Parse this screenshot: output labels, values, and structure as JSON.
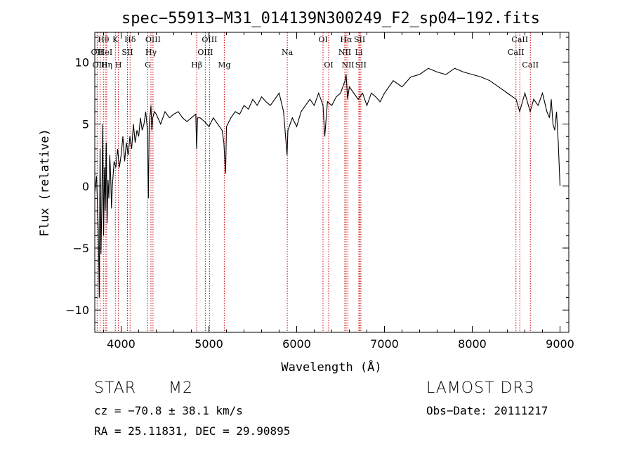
{
  "chart_data": {
    "type": "line",
    "title": "spec−55913−M31_014139N300249_F2_sp04−192.fits",
    "xlabel": "Wavelength (Å)",
    "ylabel": "Flux (relative)",
    "xlim": [
      3700,
      9100
    ],
    "ylim": [
      -11.8,
      12.4
    ],
    "xticks": [
      4000,
      5000,
      6000,
      7000,
      8000,
      9000
    ],
    "yticks": [
      -10,
      -5,
      0,
      5,
      10
    ],
    "series": [
      {
        "name": "flux",
        "x": [
          3700,
          3720,
          3740,
          3750,
          3760,
          3770,
          3780,
          3790,
          3800,
          3810,
          3820,
          3830,
          3840,
          3850,
          3860,
          3870,
          3880,
          3890,
          3900,
          3920,
          3940,
          3960,
          3980,
          4000,
          4020,
          4040,
          4060,
          4080,
          4100,
          4120,
          4140,
          4160,
          4180,
          4200,
          4220,
          4240,
          4260,
          4280,
          4300,
          4310,
          4320,
          4340,
          4350,
          4360,
          4380,
          4400,
          4450,
          4500,
          4550,
          4600,
          4650,
          4700,
          4750,
          4800,
          4850,
          4860,
          4870,
          4900,
          4950,
          5000,
          5050,
          5100,
          5150,
          5170,
          5190,
          5200,
          5250,
          5300,
          5350,
          5400,
          5450,
          5500,
          5550,
          5600,
          5650,
          5700,
          5750,
          5800,
          5850,
          5890,
          5900,
          5950,
          6000,
          6050,
          6100,
          6150,
          6200,
          6250,
          6300,
          6320,
          6350,
          6400,
          6450,
          6500,
          6550,
          6563,
          6580,
          6600,
          6650,
          6700,
          6750,
          6800,
          6850,
          6900,
          6950,
          7000,
          7100,
          7200,
          7300,
          7400,
          7500,
          7600,
          7700,
          7800,
          7900,
          8000,
          8100,
          8200,
          8300,
          8400,
          8500,
          8540,
          8600,
          8660,
          8700,
          8750,
          8800,
          8850,
          8880,
          8900,
          8920,
          8940,
          8960,
          8980,
          9000
        ],
        "y": [
          -0.5,
          0.8,
          -3.5,
          -9.0,
          3.0,
          -5.5,
          -1.5,
          5.0,
          -4.0,
          1.5,
          -2.0,
          3.5,
          -3.0,
          0.5,
          -1.0,
          2.5,
          1.0,
          -1.8,
          0.0,
          2.0,
          1.5,
          3.0,
          1.5,
          2.5,
          4.0,
          2.0,
          3.5,
          2.5,
          4.0,
          3.0,
          5.0,
          3.5,
          4.5,
          4.0,
          5.5,
          4.5,
          5.0,
          6.0,
          4.5,
          -1.0,
          5.0,
          6.5,
          4.5,
          5.5,
          6.0,
          5.8,
          5.0,
          6.0,
          5.5,
          5.8,
          6.0,
          5.5,
          5.2,
          5.5,
          5.8,
          3.0,
          5.5,
          5.5,
          5.2,
          4.8,
          5.5,
          5.0,
          4.5,
          3.5,
          1.0,
          4.8,
          5.5,
          6.0,
          5.8,
          6.5,
          6.2,
          7.0,
          6.5,
          7.2,
          6.8,
          6.5,
          7.0,
          7.5,
          6.0,
          2.5,
          4.5,
          5.5,
          4.8,
          6.0,
          6.5,
          7.0,
          6.5,
          7.5,
          6.5,
          4.0,
          6.8,
          6.5,
          7.2,
          7.5,
          8.5,
          9.0,
          7.0,
          8.0,
          7.5,
          7.0,
          7.5,
          6.5,
          7.5,
          7.2,
          6.8,
          7.5,
          8.5,
          8.0,
          8.8,
          9.0,
          9.5,
          9.2,
          9.0,
          9.5,
          9.2,
          9.0,
          8.8,
          8.5,
          8.0,
          7.5,
          7.0,
          6.0,
          7.5,
          6.0,
          7.0,
          6.5,
          7.5,
          6.0,
          5.5,
          7.0,
          5.0,
          4.5,
          6.0,
          3.5,
          0.0
        ]
      }
    ],
    "line_markers": [
      {
        "label": "Hθ",
        "x": 3798,
        "row": 0
      },
      {
        "label": "OII",
        "x": 3727,
        "row": 1
      },
      {
        "label": "OIII",
        "x": 3760,
        "row": 2
      },
      {
        "label": "HeI",
        "x": 3820,
        "row": 1
      },
      {
        "label": "Hη",
        "x": 3835,
        "row": 2
      },
      {
        "label": "K",
        "x": 3934,
        "row": 0
      },
      {
        "label": "SII",
        "x": 4072,
        "row": 1
      },
      {
        "label": "H",
        "x": 3969,
        "row": 2
      },
      {
        "label": "Hδ",
        "x": 4102,
        "row": 0
      },
      {
        "label": "OIII",
        "x": 4363,
        "row": 0
      },
      {
        "label": "Hγ",
        "x": 4340,
        "row": 1
      },
      {
        "label": "G",
        "x": 4304,
        "row": 2
      },
      {
        "label": "OIII",
        "x": 5007,
        "row": 0
      },
      {
        "label": "OIII",
        "x": 4959,
        "row": 1
      },
      {
        "label": "Hβ",
        "x": 4861,
        "row": 2
      },
      {
        "label": "Mg",
        "x": 5175,
        "row": 2
      },
      {
        "label": "Na",
        "x": 5893,
        "row": 1
      },
      {
        "label": "OI",
        "x": 6300,
        "row": 0
      },
      {
        "label": "OI",
        "x": 6364,
        "row": 2
      },
      {
        "label": "Hα",
        "x": 6563,
        "row": 0
      },
      {
        "label": "SII",
        "x": 6717,
        "row": 0
      },
      {
        "label": "NII",
        "x": 6548,
        "row": 1
      },
      {
        "label": "Li",
        "x": 6708,
        "row": 1
      },
      {
        "label": "NII",
        "x": 6584,
        "row": 2
      },
      {
        "label": "SII",
        "x": 6731,
        "row": 2
      },
      {
        "label": "CaII",
        "x": 8542,
        "row": 0
      },
      {
        "label": "CaII",
        "x": 8498,
        "row": 1
      },
      {
        "label": "CaII",
        "x": 8662,
        "row": 2
      }
    ]
  },
  "info": {
    "object_class": "STAR",
    "subclass": "M2",
    "survey": "LAMOST DR3",
    "redshift": "cz = −70.8 ± 38.1 km/s",
    "obs_date": "Obs−Date: 20111217",
    "coords": "RA =  25.11831, DEC =  29.90895"
  }
}
